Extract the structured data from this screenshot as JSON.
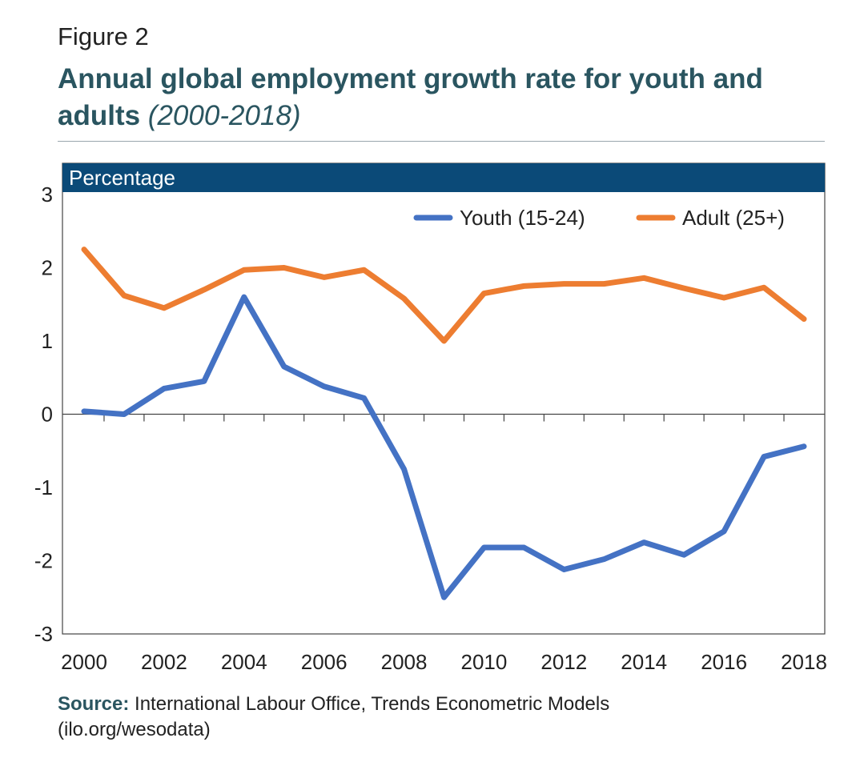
{
  "figure": {
    "label": "Figure 2",
    "title": "Annual global employment growth rate for youth and adults",
    "title_suffix_open": " (",
    "title_period": "2000-2018",
    "title_suffix_close": ")"
  },
  "source": {
    "label": "Source:",
    "text": "International Labour Office, Trends Econometric Models",
    "text_line2": "(ilo.org/wesodata)"
  },
  "colors": {
    "header_band": "#0b4a78",
    "youth": "#4472c4",
    "adult": "#ed7d31",
    "title": "#2a5560"
  },
  "chart_data": {
    "type": "line",
    "ylabel": "Percentage",
    "xlabel": "",
    "ylim": [
      -3,
      3
    ],
    "yticks": [
      "3",
      "2",
      "1",
      "0",
      "-1",
      "-2",
      "-3"
    ],
    "xlim": [
      2000,
      2018
    ],
    "xticks": [
      "2000",
      "2002",
      "2004",
      "2006",
      "2008",
      "2010",
      "2012",
      "2014",
      "2016",
      "2018"
    ],
    "x": [
      2000,
      2001,
      2002,
      2003,
      2004,
      2005,
      2006,
      2007,
      2008,
      2009,
      2010,
      2011,
      2012,
      2013,
      2014,
      2015,
      2016,
      2017,
      2018
    ],
    "legend_position": "top-right",
    "grid": false,
    "series": [
      {
        "name": "Youth (15-24)",
        "color": "#4472c4",
        "values": [
          0.04,
          0.0,
          0.35,
          0.45,
          1.6,
          0.65,
          0.38,
          0.22,
          -0.75,
          -2.5,
          -1.82,
          -1.82,
          -2.12,
          -1.98,
          -1.75,
          -1.92,
          -1.6,
          -0.58,
          -0.44
        ]
      },
      {
        "name": "Adult (25+)",
        "color": "#ed7d31",
        "values": [
          2.25,
          1.62,
          1.45,
          1.7,
          1.97,
          2.0,
          1.87,
          1.97,
          1.58,
          1.0,
          1.65,
          1.75,
          1.78,
          1.78,
          1.86,
          1.72,
          1.59,
          1.73,
          1.3
        ]
      }
    ]
  }
}
